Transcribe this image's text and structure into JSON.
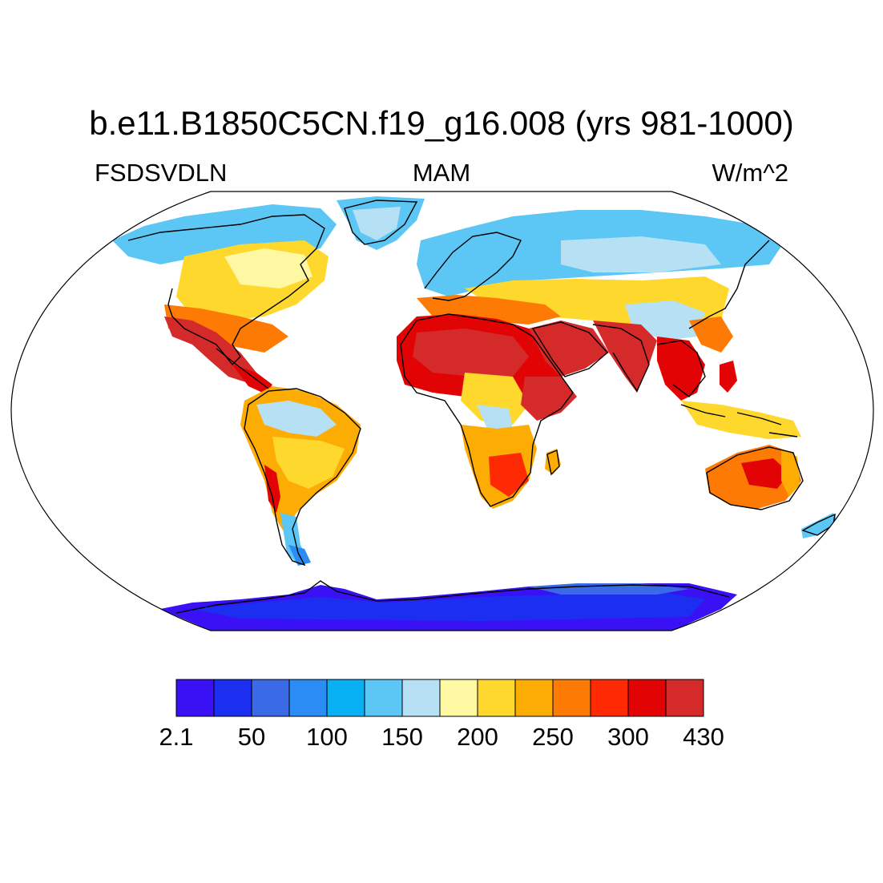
{
  "title": "b.e11.B1850C5CN.f19_g16.008 (yrs 981-1000)",
  "left_label": "FSDSVDLN",
  "center_label": "MAM",
  "right_label": "W/m^2",
  "colorbar": {
    "colors": [
      "#3a10f5",
      "#1c2ef0",
      "#3a6ae6",
      "#2a8cf4",
      "#08b0f4",
      "#5cc6f4",
      "#b6e0f4",
      "#fef8a2",
      "#fed82c",
      "#fdac04",
      "#fd7a04",
      "#fd2a04",
      "#e20404",
      "#d42a2a"
    ],
    "tick_labels": [
      "2.1",
      "50",
      "100",
      "150",
      "200",
      "250",
      "300",
      "430"
    ]
  }
}
